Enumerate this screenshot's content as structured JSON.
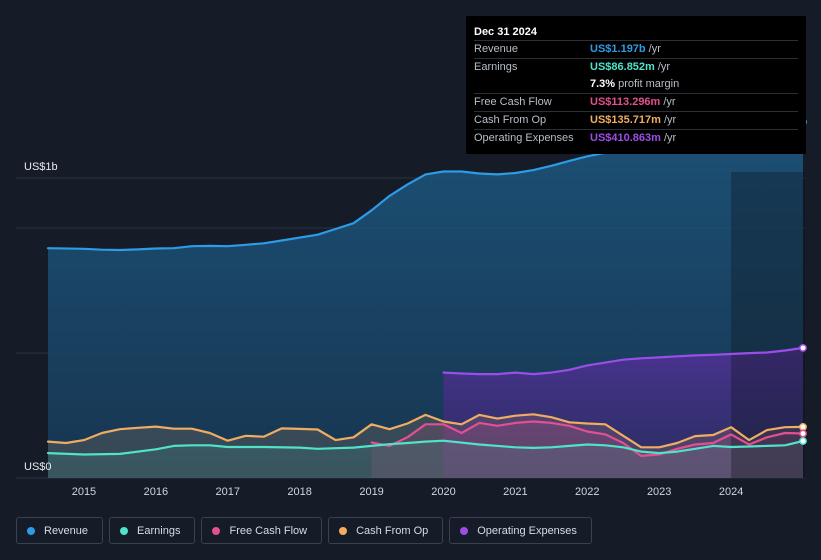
{
  "tooltip": {
    "date": "Dec 31 2024",
    "rows": [
      {
        "label": "Revenue",
        "value": "US$1.197b",
        "unit": "/yr",
        "color": "#2d9be6"
      },
      {
        "label": "Earnings",
        "value": "US$86.852m",
        "unit": "/yr",
        "color": "#4fe3c8"
      },
      {
        "label": "",
        "value": "7.3%",
        "unit": "profit margin",
        "color": "#ffffff"
      },
      {
        "label": "Free Cash Flow",
        "value": "US$113.296m",
        "unit": "/yr",
        "color": "#e3508f"
      },
      {
        "label": "Cash From Op",
        "value": "US$135.717m",
        "unit": "/yr",
        "color": "#f0ad62"
      },
      {
        "label": "Operating Expenses",
        "value": "US$410.863m",
        "unit": "/yr",
        "color": "#9b4de8"
      }
    ]
  },
  "legend": [
    {
      "label": "Revenue",
      "color": "#2d9be6"
    },
    {
      "label": "Earnings",
      "color": "#4fe3c8"
    },
    {
      "label": "Free Cash Flow",
      "color": "#e3508f"
    },
    {
      "label": "Cash From Op",
      "color": "#f0ad62"
    },
    {
      "label": "Operating Expenses",
      "color": "#9b4de8"
    }
  ],
  "chart_data": {
    "type": "area",
    "title": "",
    "xlabel": "",
    "ylabel": "",
    "y_axis_labels": {
      "top": "US$1b",
      "bottom": "US$0"
    },
    "xlim": [
      2014.5,
      2025.0
    ],
    "ylim": [
      -0.01,
      1.2
    ],
    "x_ticks": [
      2015,
      2016,
      2017,
      2018,
      2019,
      2020,
      2021,
      2022,
      2023,
      2024
    ],
    "x_tick_labels": [
      "2015",
      "2016",
      "2017",
      "2018",
      "2019",
      "2020",
      "2021",
      "2022",
      "2023",
      "2024"
    ],
    "forecast_start": 2024.0,
    "series": [
      {
        "name": "Revenue",
        "color": "#2d9be6",
        "x": [
          2014.5,
          2015.0,
          2015.25,
          2015.5,
          2015.75,
          2016.0,
          2016.25,
          2016.5,
          2016.75,
          2017.0,
          2017.25,
          2017.5,
          2017.75,
          2018.0,
          2018.25,
          2018.5,
          2018.75,
          2019.0,
          2019.25,
          2019.5,
          2019.75,
          2020.0,
          2020.25,
          2020.5,
          2020.75,
          2021.0,
          2021.25,
          2021.5,
          2021.75,
          2022.0,
          2022.25,
          2022.5,
          2022.75,
          2023.0,
          2023.25,
          2023.5,
          2023.75,
          2024.0,
          2024.25,
          2024.5,
          2024.75,
          2025.0
        ],
        "values": [
          0.758,
          0.756,
          0.753,
          0.752,
          0.754,
          0.757,
          0.758,
          0.765,
          0.766,
          0.765,
          0.77,
          0.775,
          0.785,
          0.795,
          0.805,
          0.825,
          0.845,
          0.89,
          0.94,
          0.98,
          1.015,
          1.025,
          1.025,
          1.018,
          1.015,
          1.02,
          1.03,
          1.045,
          1.062,
          1.078,
          1.09,
          1.1,
          1.112,
          1.13,
          1.16,
          1.18,
          1.19,
          1.19,
          1.19,
          1.192,
          1.194,
          1.197
        ]
      },
      {
        "name": "Earnings",
        "color": "#4fe3c8",
        "x": [
          2014.5,
          2015.0,
          2015.5,
          2016.0,
          2016.25,
          2016.5,
          2016.75,
          2017.0,
          2017.5,
          2018.0,
          2018.25,
          2018.5,
          2018.75,
          2019.0,
          2019.25,
          2019.5,
          2019.75,
          2020.0,
          2020.5,
          2021.0,
          2021.25,
          2021.5,
          2021.75,
          2022.0,
          2022.25,
          2022.5,
          2022.75,
          2023.0,
          2023.25,
          2023.5,
          2023.75,
          2024.0,
          2024.25,
          2024.5,
          2024.75,
          2025.0
        ],
        "values": [
          0.045,
          0.04,
          0.042,
          0.058,
          0.07,
          0.072,
          0.072,
          0.066,
          0.066,
          0.064,
          0.06,
          0.062,
          0.064,
          0.07,
          0.076,
          0.08,
          0.085,
          0.088,
          0.075,
          0.065,
          0.063,
          0.065,
          0.07,
          0.075,
          0.072,
          0.065,
          0.05,
          0.045,
          0.05,
          0.06,
          0.07,
          0.066,
          0.068,
          0.07,
          0.072,
          0.087
        ]
      },
      {
        "name": "Free Cash Flow",
        "color": "#e3508f",
        "x": [
          2019.0,
          2019.25,
          2019.5,
          2019.75,
          2020.0,
          2020.25,
          2020.5,
          2020.75,
          2021.0,
          2021.25,
          2021.5,
          2021.75,
          2022.0,
          2022.25,
          2022.5,
          2022.75,
          2023.0,
          2023.25,
          2023.5,
          2023.75,
          2024.0,
          2024.25,
          2024.5,
          2024.75,
          2025.0
        ],
        "values": [
          0.082,
          0.07,
          0.1,
          0.145,
          0.145,
          0.115,
          0.15,
          0.14,
          0.15,
          0.155,
          0.15,
          0.14,
          0.12,
          0.11,
          0.08,
          0.035,
          0.04,
          0.06,
          0.075,
          0.08,
          0.11,
          0.075,
          0.1,
          0.115,
          0.113
        ]
      },
      {
        "name": "Cash From Op",
        "color": "#f0ad62",
        "x": [
          2014.5,
          2014.75,
          2015.0,
          2015.25,
          2015.5,
          2015.75,
          2016.0,
          2016.25,
          2016.5,
          2016.75,
          2017.0,
          2017.25,
          2017.5,
          2017.75,
          2018.0,
          2018.25,
          2018.5,
          2018.75,
          2019.0,
          2019.25,
          2019.5,
          2019.75,
          2020.0,
          2020.25,
          2020.5,
          2020.75,
          2021.0,
          2021.25,
          2021.5,
          2021.75,
          2022.0,
          2022.25,
          2022.5,
          2022.75,
          2023.0,
          2023.25,
          2023.5,
          2023.75,
          2024.0,
          2024.25,
          2024.5,
          2024.75,
          2025.0
        ],
        "values": [
          0.085,
          0.08,
          0.09,
          0.115,
          0.128,
          0.133,
          0.137,
          0.13,
          0.13,
          0.115,
          0.088,
          0.105,
          0.102,
          0.131,
          0.129,
          0.127,
          0.09,
          0.1,
          0.145,
          0.128,
          0.148,
          0.178,
          0.155,
          0.145,
          0.178,
          0.165,
          0.175,
          0.18,
          0.17,
          0.152,
          0.148,
          0.145,
          0.105,
          0.065,
          0.065,
          0.08,
          0.104,
          0.108,
          0.135,
          0.09,
          0.125,
          0.135,
          0.136
        ]
      },
      {
        "name": "Operating Expenses",
        "color": "#9b4de8",
        "x": [
          2020.0,
          2020.25,
          2020.5,
          2020.75,
          2021.0,
          2021.25,
          2021.5,
          2021.75,
          2022.0,
          2022.25,
          2022.5,
          2022.75,
          2023.0,
          2023.25,
          2023.5,
          2023.75,
          2024.0,
          2024.25,
          2024.5,
          2024.75,
          2025.0
        ],
        "values": [
          0.325,
          0.322,
          0.32,
          0.32,
          0.325,
          0.32,
          0.325,
          0.335,
          0.35,
          0.36,
          0.37,
          0.375,
          0.378,
          0.382,
          0.385,
          0.387,
          0.39,
          0.393,
          0.395,
          0.402,
          0.411
        ]
      }
    ]
  }
}
